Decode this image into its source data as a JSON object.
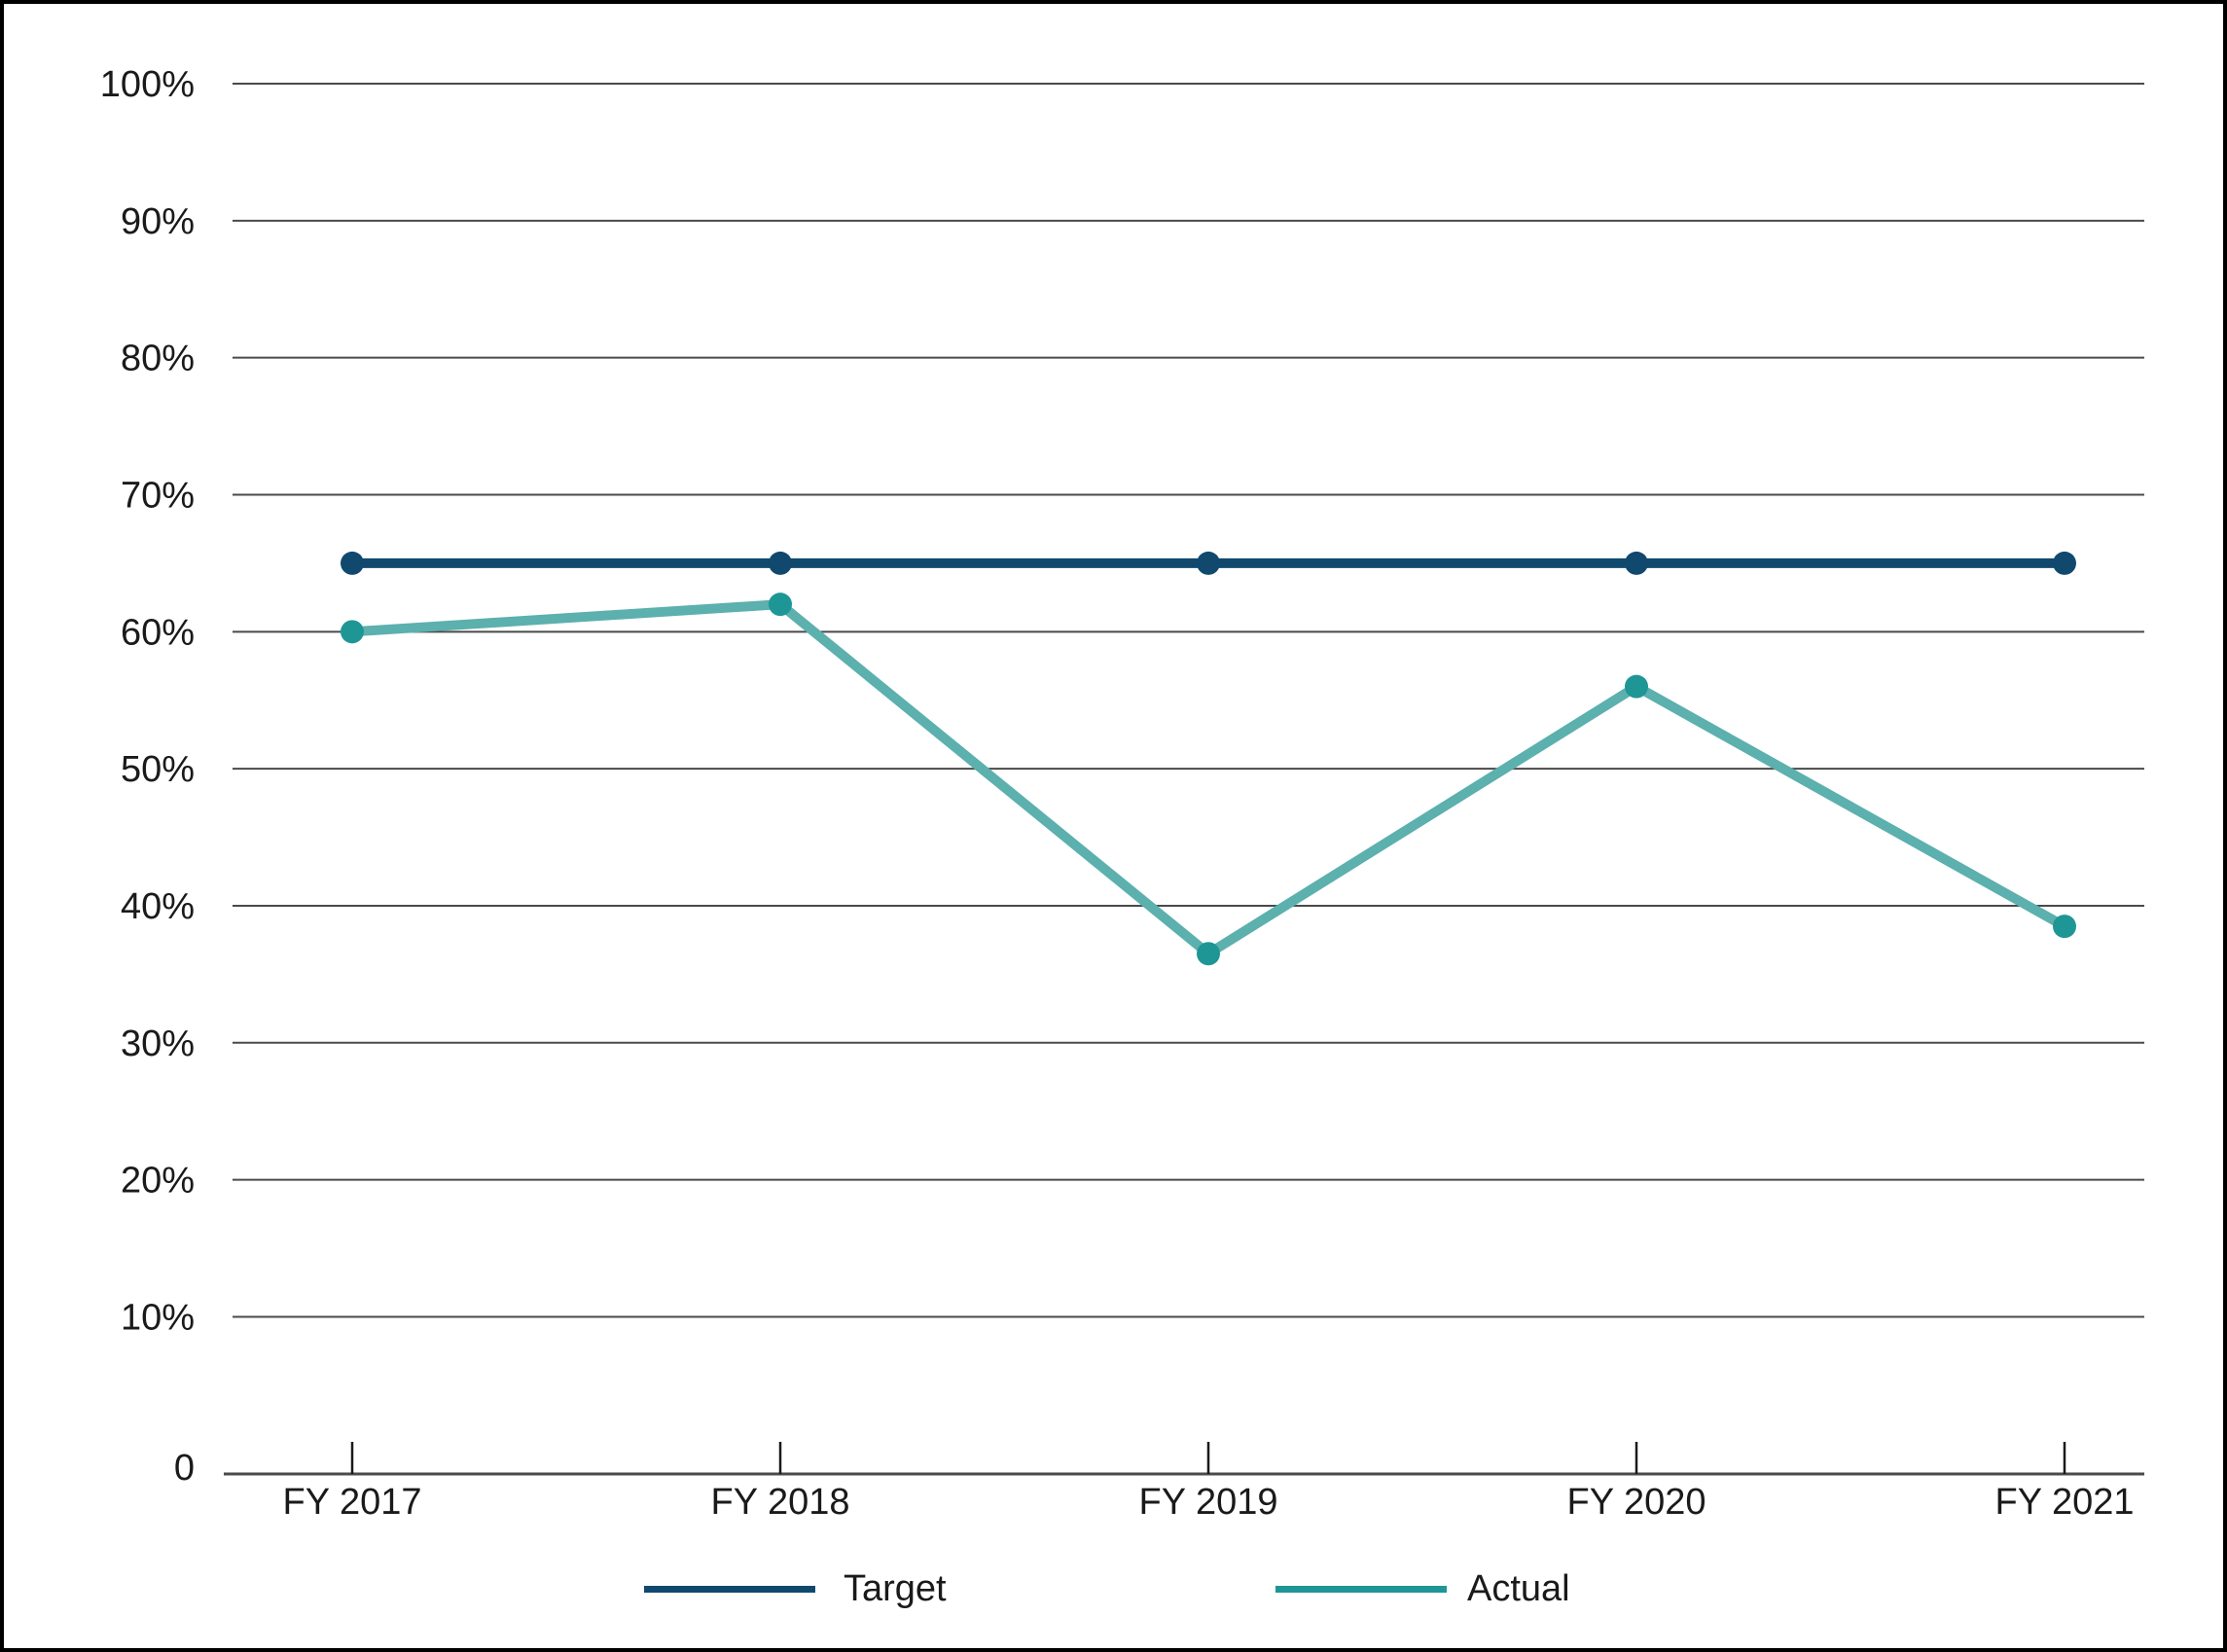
{
  "chart_data": {
    "type": "line",
    "title": "",
    "xlabel": "",
    "ylabel": "",
    "categories": [
      "FY 2017",
      "FY 2018",
      "FY 2019",
      "FY 2020",
      "FY 2021"
    ],
    "series": [
      {
        "name": "Target",
        "values": [
          65,
          65,
          65,
          65,
          65
        ],
        "line_color": "#11496E",
        "marker_color": "#11496E"
      },
      {
        "name": "Actual",
        "values": [
          60,
          62,
          36.5,
          56,
          38.5
        ],
        "line_color": "#5CB0AE",
        "marker_color": "#1F9696"
      }
    ],
    "ylim": [
      0,
      100
    ],
    "yticks": [
      {
        "value": 100,
        "label": "100%"
      },
      {
        "value": 90,
        "label": "90%"
      },
      {
        "value": 80,
        "label": "80%"
      },
      {
        "value": 70,
        "label": "70%"
      },
      {
        "value": 60,
        "label": "60%"
      },
      {
        "value": 50,
        "label": "50%"
      },
      {
        "value": 40,
        "label": "40%"
      },
      {
        "value": 30,
        "label": "30%"
      },
      {
        "value": 20,
        "label": "20%"
      },
      {
        "value": 10,
        "label": "10%"
      },
      {
        "value": 0,
        "label": "0"
      }
    ],
    "grid": "horizontal",
    "legend_position": "bottom",
    "colors": {
      "background": "#FFFFFF",
      "frame_border": "#000000",
      "gridline": "#4A4A4A",
      "axis_line": "#4A4A4A",
      "tick_mark": "#1A1A1A",
      "text": "#1A1A1A"
    }
  }
}
